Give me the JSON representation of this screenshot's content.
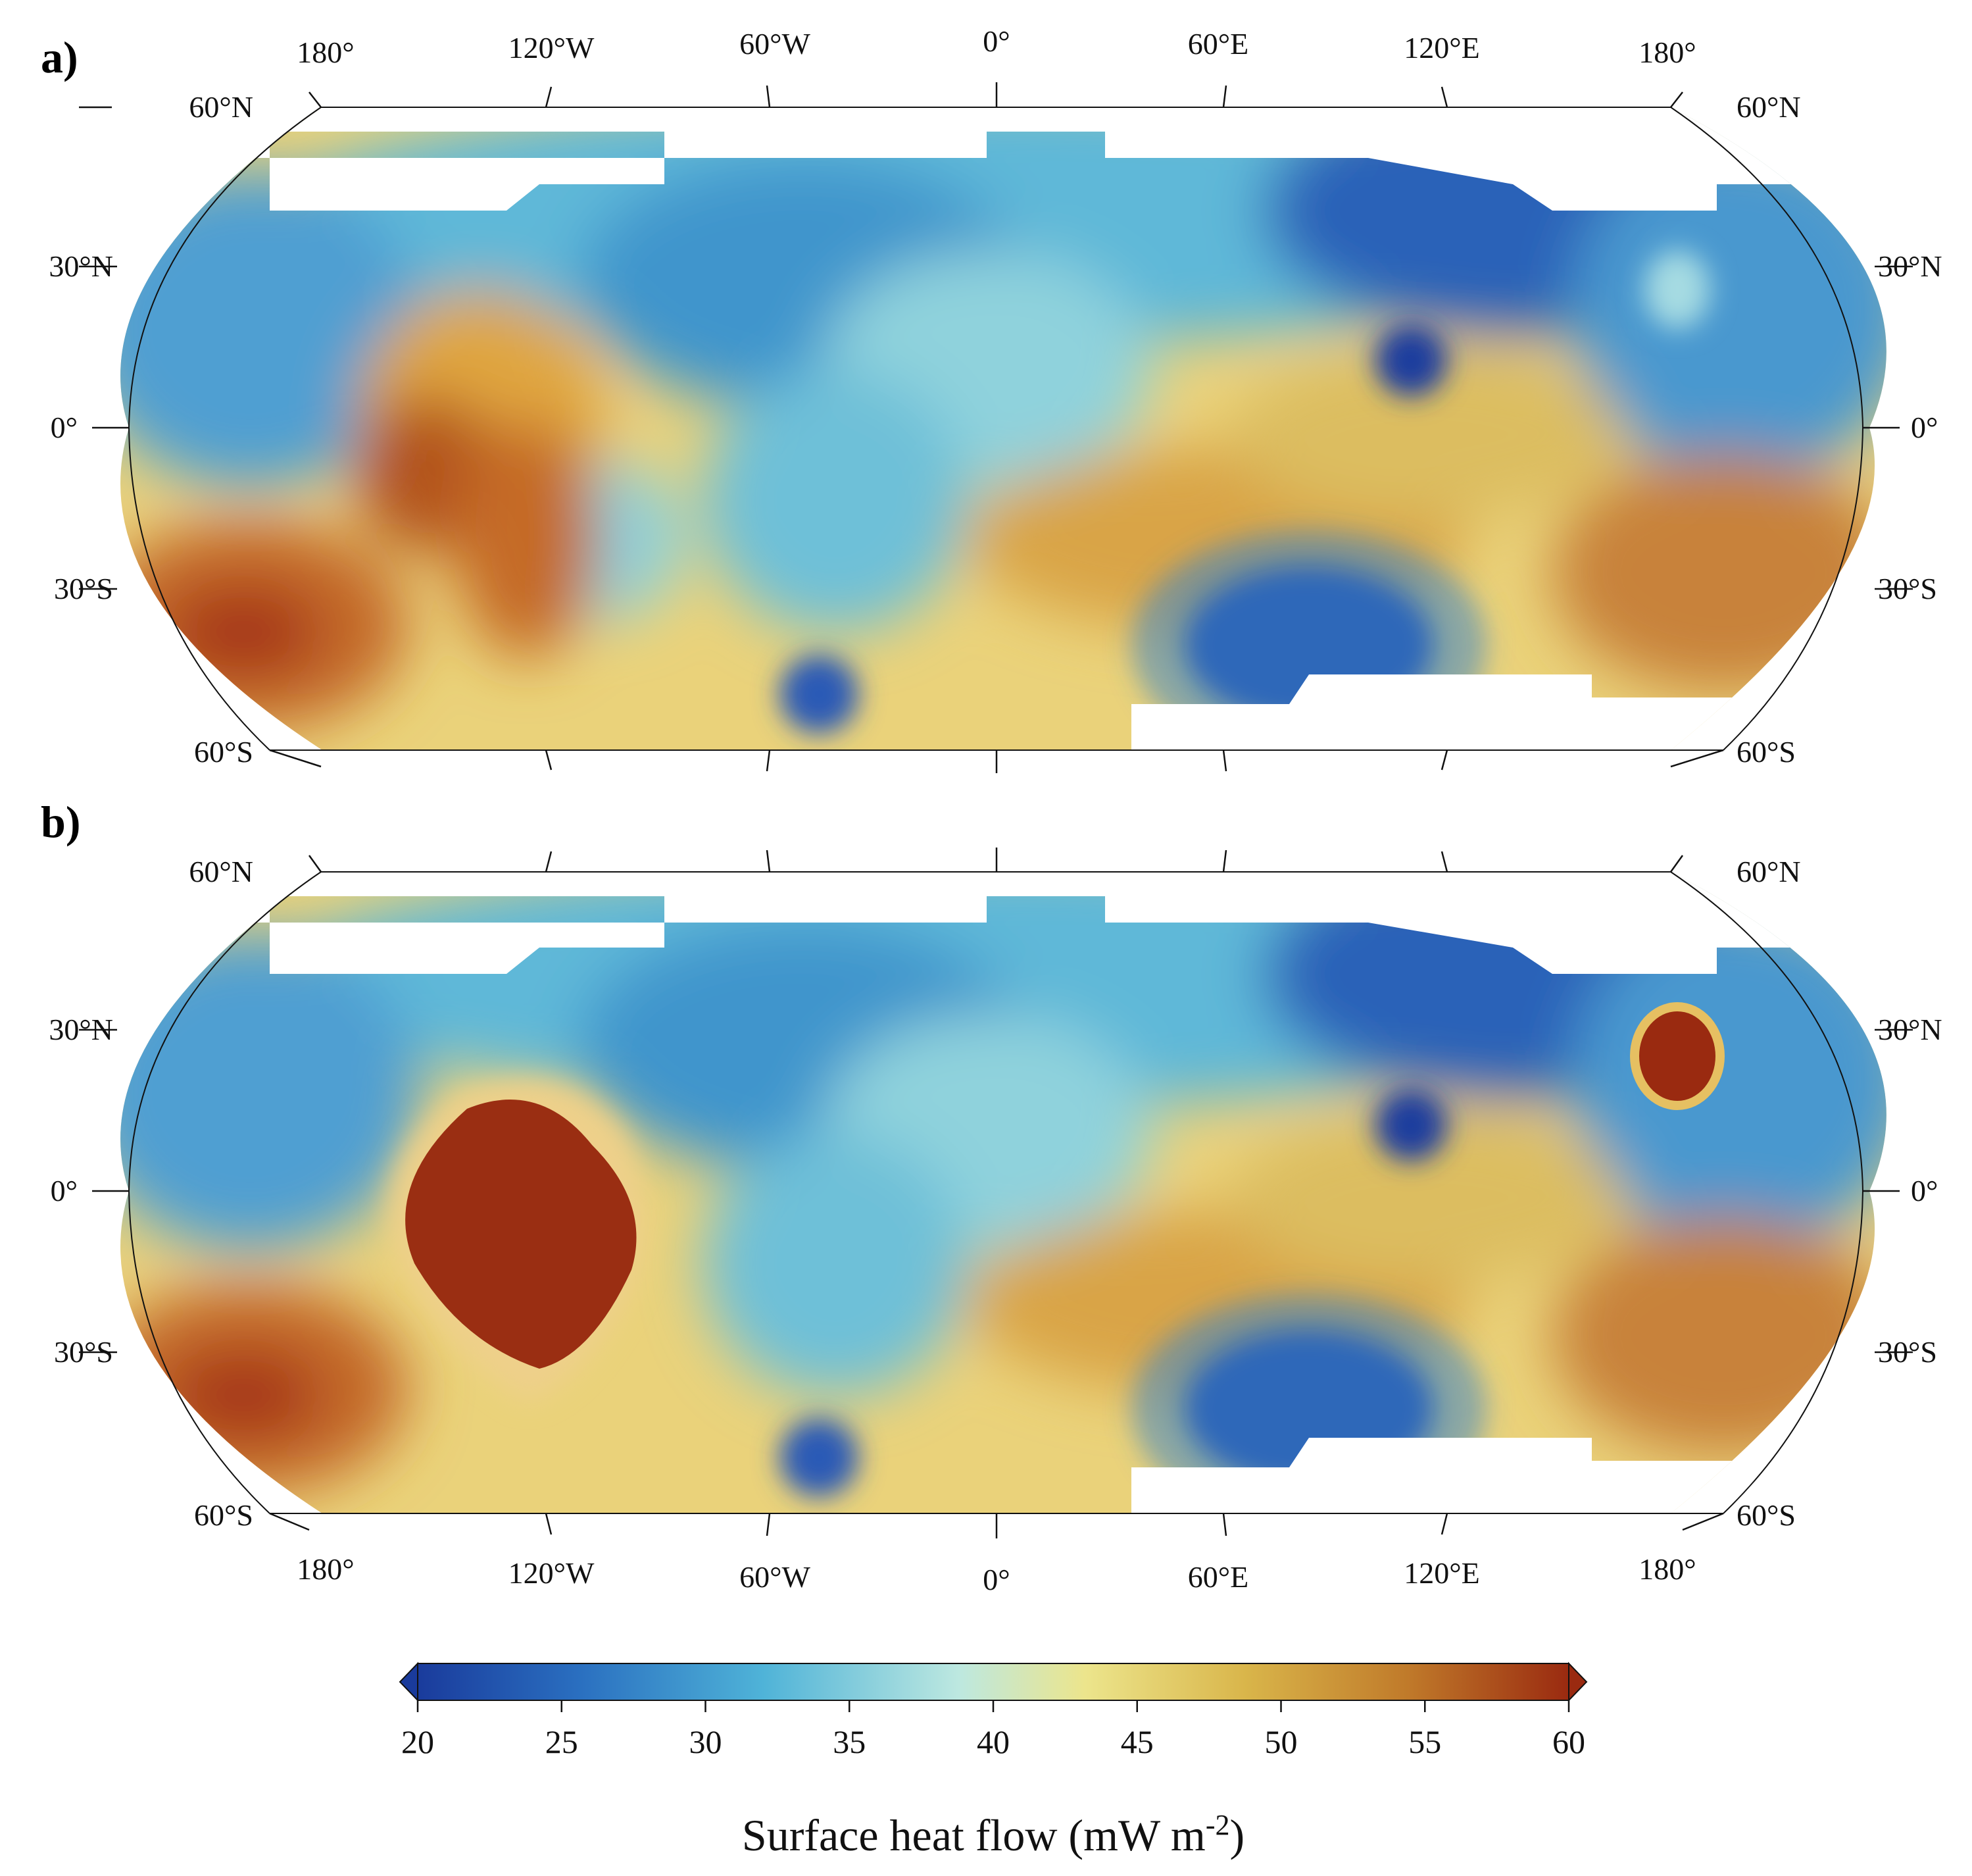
{
  "panels": [
    {
      "letter": "a)",
      "lon_labels_top": [
        "180°",
        "120°W",
        "60°W",
        "0°",
        "60°E",
        "120°E",
        "180°"
      ],
      "lat_labels": [
        "60°N",
        "30°N",
        "0°",
        "30°S",
        "60°S"
      ]
    },
    {
      "letter": "b)",
      "lon_labels_bottom": [
        "180°",
        "120°W",
        "60°W",
        "0°",
        "60°E",
        "120°E",
        "180°"
      ],
      "lat_labels": [
        "60°N",
        "30°N",
        "0°",
        "30°S",
        "60°S"
      ]
    }
  ],
  "colorbar": {
    "ticks": [
      "20",
      "25",
      "30",
      "35",
      "40",
      "45",
      "50",
      "55",
      "60"
    ],
    "min": 20,
    "max": 60,
    "colors": [
      "#1a3b9c",
      "#2a6fc0",
      "#4fb3d8",
      "#bde8e0",
      "#ece58c",
      "#d9b54a",
      "#c07a2a",
      "#9a2a10"
    ],
    "title": "Surface heat flow (mW m",
    "title_sup": "-2",
    "title_end": ")"
  }
}
